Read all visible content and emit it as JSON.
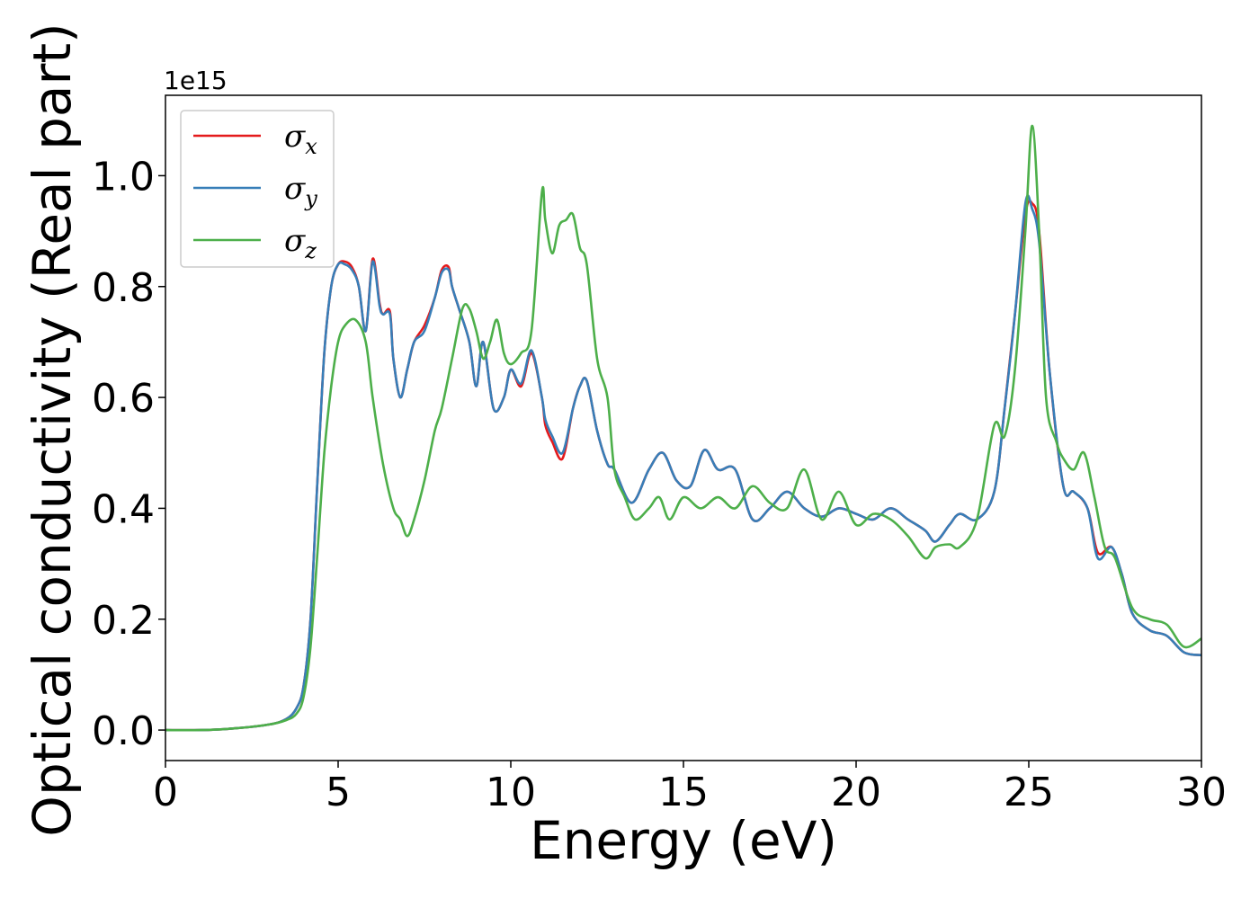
{
  "chart_data": {
    "type": "line",
    "xlabel": "Energy (eV)",
    "ylabel": "Optical conductivity (Real part)",
    "y_offset_text": "1e15",
    "xlim": [
      0,
      30
    ],
    "ylim": [
      -0.055,
      1.145
    ],
    "xticks": [
      0,
      5,
      10,
      15,
      20,
      25,
      30
    ],
    "xtick_labels": [
      "0",
      "5",
      "10",
      "15",
      "20",
      "25",
      "30"
    ],
    "yticks": [
      0.0,
      0.2,
      0.4,
      0.6,
      0.8,
      1.0
    ],
    "ytick_labels": [
      "0.0",
      "0.2",
      "0.4",
      "0.6",
      "0.8",
      "1.0"
    ],
    "grid": false,
    "legend_position": "top-left",
    "series": [
      {
        "name": "σ",
        "subscript": "x",
        "color": "#e41a1c",
        "x": [
          0,
          1,
          2,
          3,
          3.5,
          3.8,
          4.0,
          4.2,
          4.4,
          4.6,
          4.8,
          5.0,
          5.2,
          5.4,
          5.6,
          5.8,
          6.0,
          6.2,
          6.3,
          6.5,
          6.6,
          6.8,
          7.0,
          7.2,
          7.5,
          7.8,
          8.0,
          8.2,
          8.3,
          8.5,
          8.8,
          9.0,
          9.2,
          9.5,
          9.8,
          10.0,
          10.3,
          10.6,
          10.9,
          11.0,
          11.2,
          11.5,
          11.8,
          12.0,
          12.2,
          12.5,
          12.8,
          13.0,
          13.5,
          14.0,
          14.4,
          14.8,
          15.2,
          15.6,
          16.0,
          16.5,
          17.0,
          17.5,
          18.0,
          18.5,
          19.0,
          19.5,
          20.0,
          20.5,
          21.0,
          21.5,
          22.0,
          22.3,
          22.7,
          23.0,
          23.5,
          24.0,
          24.3,
          24.6,
          24.9,
          25.1,
          25.3,
          25.6,
          26.0,
          26.3,
          26.7,
          27.0,
          27.4,
          27.7,
          28.0,
          28.5,
          29.0,
          29.5,
          30.0
        ],
        "values": [
          0.0,
          0.0,
          0.003,
          0.01,
          0.02,
          0.04,
          0.08,
          0.2,
          0.45,
          0.68,
          0.8,
          0.84,
          0.845,
          0.835,
          0.8,
          0.72,
          0.85,
          0.77,
          0.75,
          0.755,
          0.67,
          0.6,
          0.65,
          0.7,
          0.73,
          0.78,
          0.83,
          0.835,
          0.8,
          0.76,
          0.7,
          0.62,
          0.7,
          0.58,
          0.6,
          0.65,
          0.62,
          0.68,
          0.6,
          0.55,
          0.52,
          0.49,
          0.58,
          0.62,
          0.63,
          0.54,
          0.48,
          0.47,
          0.41,
          0.47,
          0.5,
          0.45,
          0.44,
          0.505,
          0.47,
          0.47,
          0.38,
          0.4,
          0.43,
          0.4,
          0.385,
          0.4,
          0.39,
          0.38,
          0.4,
          0.38,
          0.36,
          0.34,
          0.37,
          0.39,
          0.38,
          0.43,
          0.58,
          0.75,
          0.93,
          0.95,
          0.9,
          0.65,
          0.44,
          0.43,
          0.4,
          0.32,
          0.33,
          0.28,
          0.21,
          0.18,
          0.17,
          0.14,
          0.135
        ]
      },
      {
        "name": "σ",
        "subscript": "y",
        "color": "#377eb8",
        "x": [
          0,
          1,
          2,
          3,
          3.5,
          3.8,
          4.0,
          4.2,
          4.4,
          4.6,
          4.8,
          5.0,
          5.2,
          5.4,
          5.6,
          5.8,
          6.0,
          6.2,
          6.3,
          6.5,
          6.6,
          6.8,
          7.0,
          7.2,
          7.5,
          7.8,
          8.0,
          8.2,
          8.3,
          8.5,
          8.8,
          9.0,
          9.2,
          9.5,
          9.8,
          10.0,
          10.3,
          10.6,
          10.9,
          11.0,
          11.2,
          11.5,
          11.8,
          12.0,
          12.2,
          12.5,
          12.8,
          13.0,
          13.5,
          14.0,
          14.4,
          14.8,
          15.2,
          15.6,
          16.0,
          16.5,
          17.0,
          17.5,
          18.0,
          18.5,
          19.0,
          19.5,
          20.0,
          20.5,
          21.0,
          21.5,
          22.0,
          22.3,
          22.7,
          23.0,
          23.5,
          24.0,
          24.3,
          24.6,
          24.9,
          25.1,
          25.3,
          25.6,
          26.0,
          26.3,
          26.7,
          27.0,
          27.4,
          27.7,
          28.0,
          28.5,
          29.0,
          29.5,
          30.0
        ],
        "values": [
          0.0,
          0.0,
          0.003,
          0.01,
          0.02,
          0.04,
          0.08,
          0.2,
          0.45,
          0.68,
          0.8,
          0.84,
          0.84,
          0.83,
          0.8,
          0.72,
          0.845,
          0.765,
          0.75,
          0.75,
          0.67,
          0.6,
          0.65,
          0.7,
          0.72,
          0.78,
          0.825,
          0.83,
          0.8,
          0.76,
          0.7,
          0.62,
          0.7,
          0.58,
          0.6,
          0.65,
          0.625,
          0.685,
          0.6,
          0.56,
          0.53,
          0.5,
          0.58,
          0.62,
          0.63,
          0.54,
          0.48,
          0.47,
          0.41,
          0.47,
          0.5,
          0.45,
          0.44,
          0.505,
          0.47,
          0.47,
          0.38,
          0.4,
          0.43,
          0.4,
          0.385,
          0.4,
          0.39,
          0.38,
          0.4,
          0.38,
          0.36,
          0.34,
          0.37,
          0.39,
          0.38,
          0.43,
          0.58,
          0.75,
          0.95,
          0.94,
          0.88,
          0.65,
          0.44,
          0.43,
          0.4,
          0.31,
          0.33,
          0.28,
          0.21,
          0.18,
          0.17,
          0.14,
          0.135
        ]
      },
      {
        "name": "σ",
        "subscript": "z",
        "color": "#4daf4a",
        "x": [
          0,
          1,
          2,
          3,
          3.5,
          3.8,
          4.0,
          4.2,
          4.4,
          4.6,
          4.8,
          5.0,
          5.2,
          5.5,
          5.8,
          6.0,
          6.3,
          6.6,
          6.8,
          7.0,
          7.2,
          7.5,
          7.8,
          8.0,
          8.3,
          8.6,
          8.8,
          9.0,
          9.2,
          9.4,
          9.6,
          9.8,
          10.0,
          10.3,
          10.6,
          10.9,
          11.0,
          11.2,
          11.4,
          11.6,
          11.8,
          12.0,
          12.2,
          12.5,
          12.8,
          13.0,
          13.3,
          13.6,
          14.0,
          14.3,
          14.6,
          15.0,
          15.5,
          16.0,
          16.5,
          17.0,
          17.5,
          18.0,
          18.5,
          19.0,
          19.5,
          20.0,
          20.5,
          21.0,
          21.5,
          22.0,
          22.3,
          22.7,
          23.0,
          23.5,
          24.0,
          24.3,
          24.6,
          24.9,
          25.1,
          25.3,
          25.5,
          25.8,
          26.0,
          26.3,
          26.6,
          26.9,
          27.2,
          27.5,
          28.0,
          28.5,
          29.0,
          29.5,
          30.0
        ],
        "values": [
          0.0,
          0.0,
          0.003,
          0.01,
          0.018,
          0.03,
          0.06,
          0.15,
          0.32,
          0.5,
          0.62,
          0.7,
          0.73,
          0.74,
          0.7,
          0.6,
          0.48,
          0.4,
          0.38,
          0.35,
          0.38,
          0.45,
          0.54,
          0.58,
          0.67,
          0.76,
          0.76,
          0.72,
          0.67,
          0.7,
          0.74,
          0.68,
          0.66,
          0.68,
          0.72,
          0.97,
          0.92,
          0.86,
          0.91,
          0.92,
          0.93,
          0.87,
          0.84,
          0.67,
          0.6,
          0.47,
          0.42,
          0.38,
          0.4,
          0.42,
          0.38,
          0.42,
          0.4,
          0.42,
          0.4,
          0.44,
          0.41,
          0.4,
          0.47,
          0.38,
          0.43,
          0.37,
          0.39,
          0.38,
          0.35,
          0.31,
          0.33,
          0.335,
          0.33,
          0.38,
          0.55,
          0.53,
          0.65,
          0.9,
          1.09,
          0.9,
          0.6,
          0.52,
          0.49,
          0.47,
          0.5,
          0.42,
          0.33,
          0.31,
          0.22,
          0.2,
          0.19,
          0.15,
          0.165
        ]
      }
    ]
  }
}
